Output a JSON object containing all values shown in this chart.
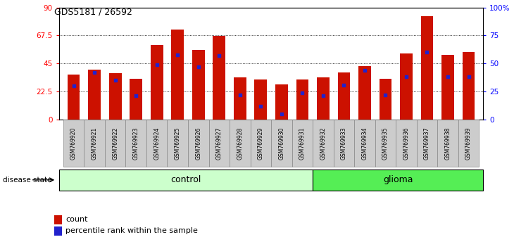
{
  "title": "GDS5181 / 26592",
  "samples": [
    "GSM769920",
    "GSM769921",
    "GSM769922",
    "GSM769923",
    "GSM769924",
    "GSM769925",
    "GSM769926",
    "GSM769927",
    "GSM769928",
    "GSM769929",
    "GSM769930",
    "GSM769931",
    "GSM769932",
    "GSM769933",
    "GSM769934",
    "GSM769935",
    "GSM769936",
    "GSM769937",
    "GSM769938",
    "GSM769939"
  ],
  "counts": [
    36,
    40,
    37,
    33,
    60,
    72,
    56,
    67,
    34,
    32,
    28,
    32,
    34,
    38,
    43,
    33,
    53,
    83,
    52,
    54
  ],
  "percentiles": [
    30,
    42,
    35,
    21,
    49,
    58,
    47,
    57,
    22,
    12,
    5,
    24,
    21,
    31,
    44,
    22,
    38,
    60,
    38,
    38
  ],
  "control_count": 12,
  "ylim_left": [
    0,
    90
  ],
  "ylim_right": [
    0,
    100
  ],
  "yticks_left": [
    0,
    22.5,
    45,
    67.5,
    90
  ],
  "yticks_right": [
    0,
    25,
    50,
    75,
    100
  ],
  "ytick_labels_left": [
    "0",
    "22.5",
    "45",
    "67.5",
    "90"
  ],
  "ytick_labels_right": [
    "0",
    "25",
    "50",
    "75",
    "100%"
  ],
  "bar_color": "#cc1100",
  "dot_color": "#2222cc",
  "control_color": "#ccffcc",
  "glioma_color": "#55ee55",
  "tick_bg_color": "#cccccc",
  "legend_count_label": "count",
  "legend_pct_label": "percentile rank within the sample",
  "disease_state_label": "disease state",
  "control_label": "control",
  "glioma_label": "glioma",
  "bar_width": 0.6
}
